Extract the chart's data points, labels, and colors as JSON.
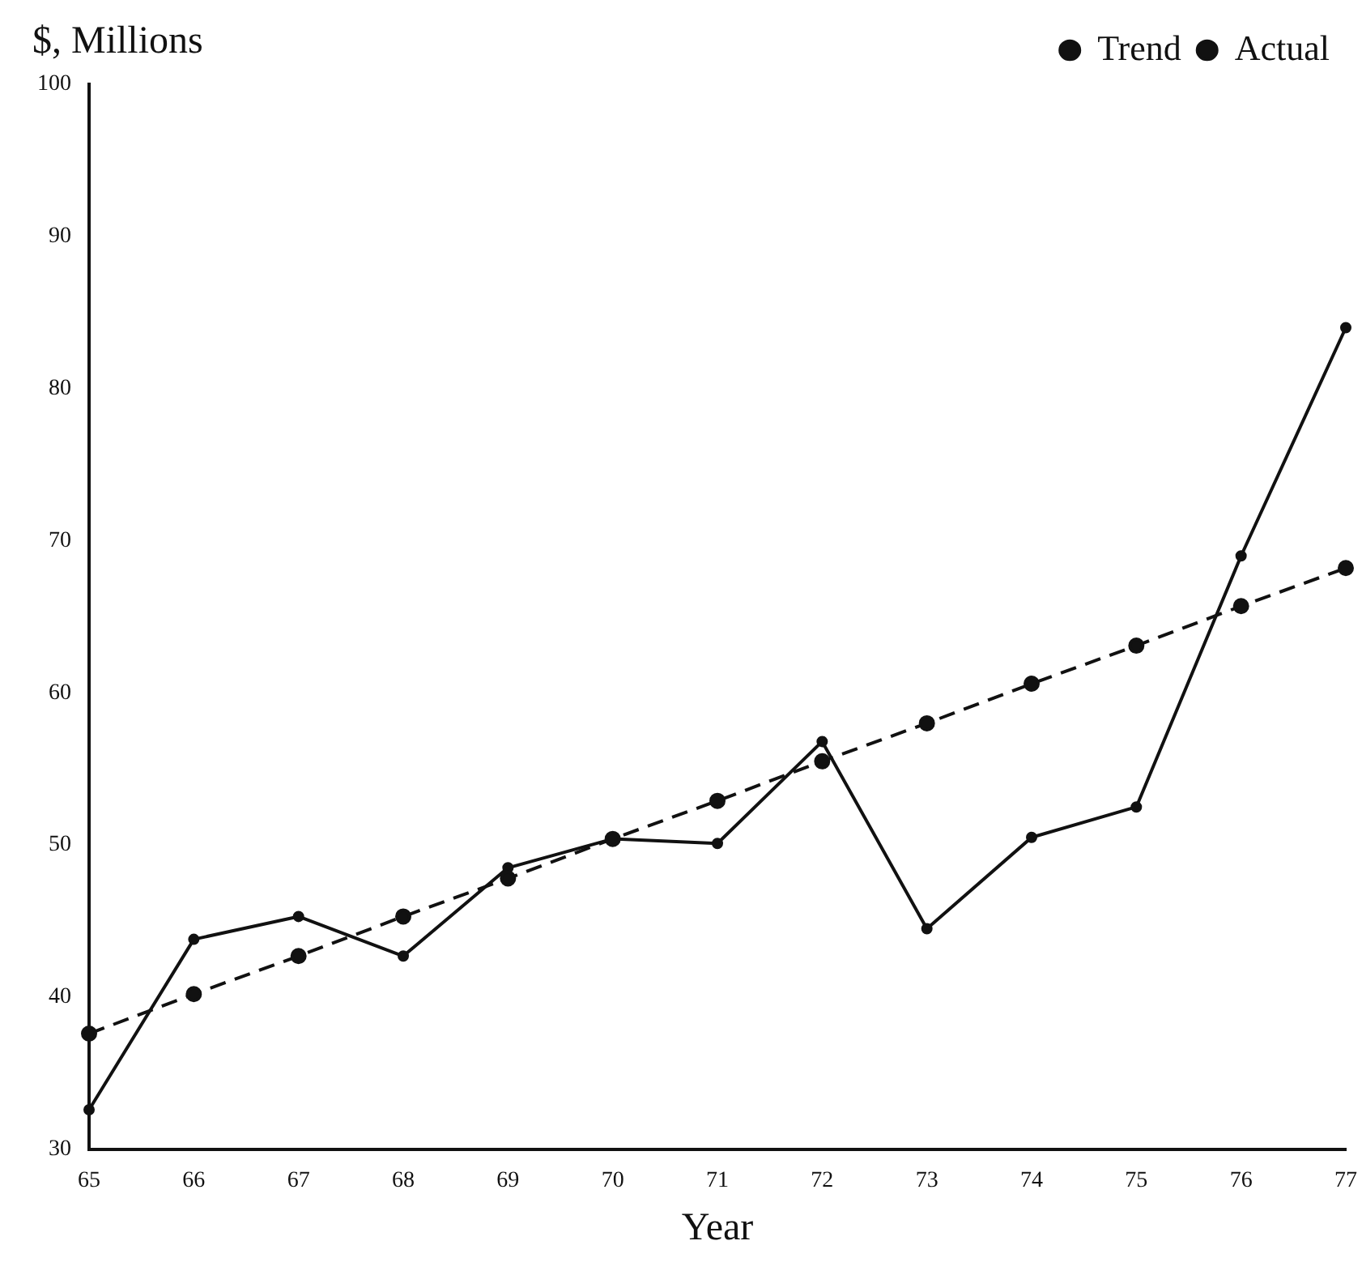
{
  "chart_data": {
    "type": "line",
    "xlabel": "Year",
    "ylabel": "$, Millions",
    "categories": [
      "65",
      "66",
      "67",
      "68",
      "69",
      "70",
      "71",
      "72",
      "73",
      "74",
      "75",
      "76",
      "77"
    ],
    "series": [
      {
        "name": "Trend",
        "color": "#111111",
        "line_style": "dashed",
        "values": [
          37.6,
          40.2,
          42.7,
          45.3,
          47.8,
          50.4,
          52.9,
          55.5,
          58,
          60.6,
          63.1,
          65.7,
          68.2
        ]
      },
      {
        "name": "Actual",
        "color": "#111111",
        "line_style": "solid",
        "values": [
          32.6,
          43.8,
          45.3,
          42.7,
          48.5,
          50.4,
          50.1,
          56.8,
          44.5,
          50.5,
          52.5,
          69,
          84
        ]
      }
    ],
    "ylim": [
      30,
      100
    ],
    "yticks": [
      30,
      40,
      50,
      60,
      70,
      80,
      90,
      100
    ],
    "grid": false,
    "legend": "top right",
    "marker": "circle"
  }
}
